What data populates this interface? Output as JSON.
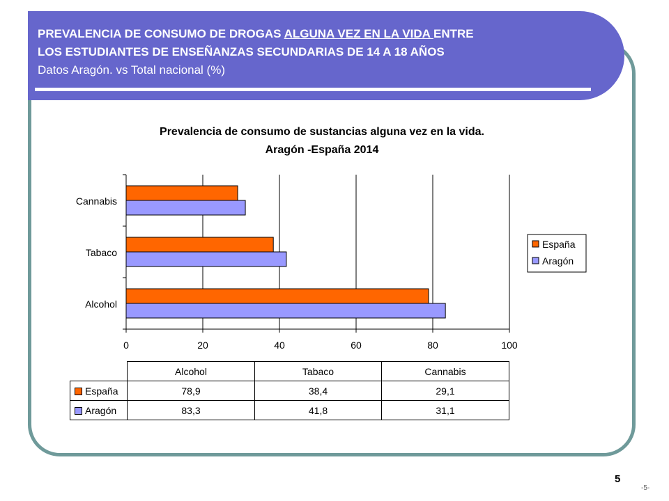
{
  "header": {
    "line1_before": "PREVALENCIA DE CONSUMO DE DROGAS ",
    "line1_underlined": "ALGUNA VEZ EN LA VIDA ",
    "line1_after": "ENTRE",
    "line2": "LOS ESTUDIANTES DE ENSEÑANZAS SECUNDARIAS DE 14 A 18 AÑOS",
    "line3": "Datos Aragón. vs Total nacional (%)"
  },
  "page_number": "5",
  "footer_number": "-5-",
  "colors": {
    "header_band": "#6666cc",
    "frame": "#6f9a9a",
    "espana": "#ff6600",
    "aragon": "#9999ff"
  },
  "chart_data": {
    "type": "bar",
    "orientation": "horizontal",
    "title": "Prevalencia de consumo de sustancias alguna vez en la vida.",
    "subtitle": "Aragón -España 2014",
    "categories": [
      "Alcohol",
      "Tabaco",
      "Cannabis"
    ],
    "series": [
      {
        "name": "España",
        "color": "#ff6600",
        "values": [
          78.9,
          38.4,
          29.1
        ]
      },
      {
        "name": "Aragón",
        "color": "#9999ff",
        "values": [
          83.3,
          41.8,
          31.1
        ]
      }
    ],
    "xlim": [
      0,
      100
    ],
    "xticks": [
      "0",
      "20",
      "40",
      "60",
      "80",
      "100"
    ],
    "grid": "vertical",
    "legend_position": "right"
  },
  "table": {
    "headers": [
      "Alcohol",
      "Tabaco",
      "Cannabis"
    ],
    "rows": [
      {
        "label": "España",
        "values": [
          "78,9",
          "38,4",
          "29,1"
        ]
      },
      {
        "label": "Aragón",
        "values": [
          "83,3",
          "41,8",
          "31,1"
        ]
      }
    ]
  }
}
